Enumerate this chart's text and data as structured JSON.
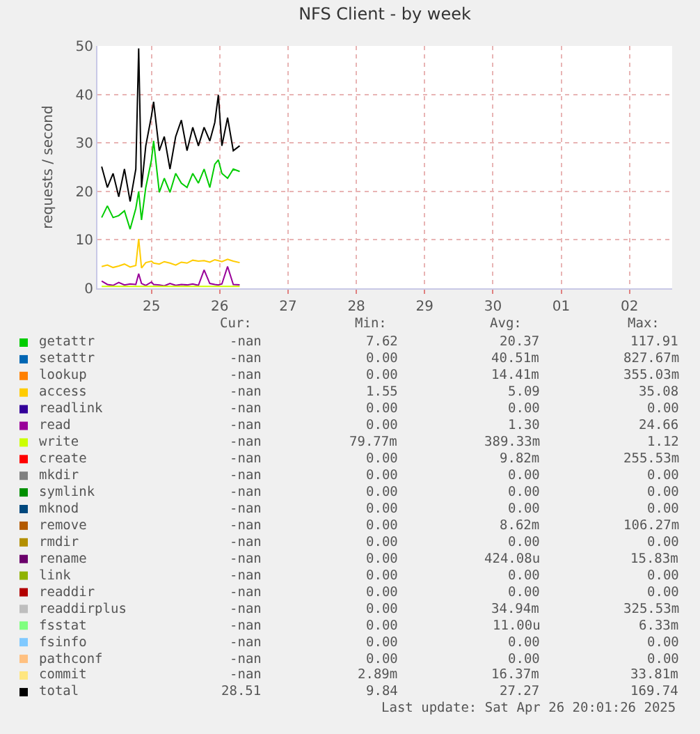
{
  "chart_data": {
    "type": "line",
    "title": "NFS Client - by week",
    "ylabel": "requests / second",
    "x": [
      "2025-04-24T18:30",
      "2025-04-24T20:30",
      "2025-04-24T22:30",
      "2025-04-25T00:30",
      "2025-04-25T02:30",
      "2025-04-25T04:30",
      "2025-04-25T06:30",
      "2025-04-25T07:30",
      "2025-04-25T08:30",
      "2025-04-25T10:00",
      "2025-04-25T12:00",
      "2025-04-25T12:45",
      "2025-04-25T14:45",
      "2025-04-25T16:30",
      "2025-04-25T18:30",
      "2025-04-25T20:30",
      "2025-04-25T22:30",
      "2025-04-26T00:30",
      "2025-04-26T02:30",
      "2025-04-26T04:30",
      "2025-04-26T06:30",
      "2025-04-26T08:30",
      "2025-04-26T10:15",
      "2025-04-26T11:30",
      "2025-04-26T12:45",
      "2025-04-26T14:45",
      "2025-04-26T16:45",
      "2025-04-26T19:00"
    ],
    "series": [
      {
        "name": "getattr",
        "color": "#00cc00",
        "values": [
          14.6,
          17.0,
          14.6,
          15.0,
          16.0,
          12.2,
          16.5,
          20.0,
          14.1,
          20.8,
          26.5,
          30.4,
          19.8,
          22.7,
          19.8,
          23.7,
          21.7,
          20.8,
          23.7,
          21.7,
          24.6,
          20.8,
          25.6,
          26.5,
          23.7,
          22.7,
          24.6,
          24.1
        ]
      },
      {
        "name": "setattr",
        "color": "#0066b3",
        "values": [
          null,
          null,
          null,
          null,
          null,
          null,
          null,
          null,
          null,
          null,
          null,
          null,
          null,
          null,
          null,
          null,
          null,
          null,
          null,
          null,
          null,
          null,
          null,
          null,
          null,
          null,
          null,
          null
        ]
      },
      {
        "name": "lookup",
        "color": "#ff8000",
        "values": [
          null,
          null,
          null,
          null,
          null,
          null,
          null,
          null,
          null,
          null,
          null,
          null,
          null,
          null,
          null,
          null,
          null,
          null,
          null,
          null,
          null,
          null,
          null,
          null,
          null,
          null,
          null,
          null
        ]
      },
      {
        "name": "access",
        "color": "#ffcc00",
        "values": [
          4.5,
          4.8,
          4.3,
          4.6,
          5.0,
          4.4,
          4.7,
          10.2,
          4.2,
          5.3,
          5.6,
          5.2,
          5.0,
          5.5,
          5.2,
          4.8,
          5.4,
          5.2,
          5.8,
          5.6,
          5.7,
          5.4,
          5.9,
          5.7,
          5.5,
          6.0,
          5.6,
          5.3
        ]
      },
      {
        "name": "readlink",
        "color": "#330099",
        "values": [
          null,
          null,
          null,
          null,
          null,
          null,
          null,
          null,
          null,
          null,
          null,
          null,
          null,
          null,
          null,
          null,
          null,
          null,
          null,
          null,
          null,
          null,
          null,
          null,
          null,
          null,
          null,
          null
        ]
      },
      {
        "name": "read",
        "color": "#990099",
        "values": [
          1.5,
          0.8,
          0.6,
          1.2,
          0.7,
          0.9,
          0.8,
          3.0,
          1.0,
          0.6,
          1.3,
          0.8,
          0.7,
          0.5,
          1.0,
          0.6,
          0.8,
          0.7,
          0.9,
          0.6,
          3.8,
          1.0,
          0.8,
          0.7,
          0.9,
          4.5,
          0.8,
          0.7
        ]
      },
      {
        "name": "write",
        "color": "#ccff00",
        "values": [
          0.4,
          0.4,
          0.4,
          0.4,
          0.4,
          0.4,
          0.4,
          0.4,
          0.4,
          0.4,
          0.4,
          0.4,
          0.4,
          0.4,
          0.4,
          0.4,
          0.4,
          0.4,
          0.4,
          0.4,
          0.4,
          0.4,
          0.4,
          0.4,
          0.4,
          0.4,
          0.4,
          0.4
        ]
      },
      {
        "name": "create",
        "color": "#ff0000",
        "values": [
          null,
          null,
          null,
          null,
          null,
          null,
          null,
          null,
          null,
          null,
          null,
          null,
          null,
          null,
          null,
          null,
          null,
          null,
          null,
          null,
          null,
          null,
          null,
          null,
          null,
          null,
          null,
          null
        ]
      },
      {
        "name": "mkdir",
        "color": "#808080",
        "values": [
          null,
          null,
          null,
          null,
          null,
          null,
          null,
          null,
          null,
          null,
          null,
          null,
          null,
          null,
          null,
          null,
          null,
          null,
          null,
          null,
          null,
          null,
          null,
          null,
          null,
          null,
          null,
          null
        ]
      },
      {
        "name": "symlink",
        "color": "#008f00",
        "values": [
          null,
          null,
          null,
          null,
          null,
          null,
          null,
          null,
          null,
          null,
          null,
          null,
          null,
          null,
          null,
          null,
          null,
          null,
          null,
          null,
          null,
          null,
          null,
          null,
          null,
          null,
          null,
          null
        ]
      },
      {
        "name": "mknod",
        "color": "#00487d",
        "values": [
          null,
          null,
          null,
          null,
          null,
          null,
          null,
          null,
          null,
          null,
          null,
          null,
          null,
          null,
          null,
          null,
          null,
          null,
          null,
          null,
          null,
          null,
          null,
          null,
          null,
          null,
          null,
          null
        ]
      },
      {
        "name": "remove",
        "color": "#b35a00",
        "values": [
          null,
          null,
          null,
          null,
          null,
          null,
          null,
          null,
          null,
          null,
          null,
          null,
          null,
          null,
          null,
          null,
          null,
          null,
          null,
          null,
          null,
          null,
          null,
          null,
          null,
          null,
          null,
          null
        ]
      },
      {
        "name": "rmdir",
        "color": "#b38f00",
        "values": [
          null,
          null,
          null,
          null,
          null,
          null,
          null,
          null,
          null,
          null,
          null,
          null,
          null,
          null,
          null,
          null,
          null,
          null,
          null,
          null,
          null,
          null,
          null,
          null,
          null,
          null,
          null,
          null
        ]
      },
      {
        "name": "rename",
        "color": "#6b006b",
        "values": [
          null,
          null,
          null,
          null,
          null,
          null,
          null,
          null,
          null,
          null,
          null,
          null,
          null,
          null,
          null,
          null,
          null,
          null,
          null,
          null,
          null,
          null,
          null,
          null,
          null,
          null,
          null,
          null
        ]
      },
      {
        "name": "link",
        "color": "#8fb300",
        "values": [
          null,
          null,
          null,
          null,
          null,
          null,
          null,
          null,
          null,
          null,
          null,
          null,
          null,
          null,
          null,
          null,
          null,
          null,
          null,
          null,
          null,
          null,
          null,
          null,
          null,
          null,
          null,
          null
        ]
      },
      {
        "name": "readdir",
        "color": "#b30000",
        "values": [
          null,
          null,
          null,
          null,
          null,
          null,
          null,
          null,
          null,
          null,
          null,
          null,
          null,
          null,
          null,
          null,
          null,
          null,
          null,
          null,
          null,
          null,
          null,
          null,
          null,
          null,
          null,
          null
        ]
      },
      {
        "name": "readdirplus",
        "color": "#bebebe",
        "values": [
          null,
          null,
          null,
          null,
          null,
          null,
          null,
          null,
          null,
          null,
          null,
          null,
          null,
          null,
          null,
          null,
          null,
          null,
          null,
          null,
          null,
          null,
          null,
          null,
          null,
          null,
          null,
          null
        ]
      },
      {
        "name": "fsstat",
        "color": "#80ff80",
        "values": [
          null,
          null,
          null,
          null,
          null,
          null,
          null,
          null,
          null,
          null,
          null,
          null,
          null,
          null,
          null,
          null,
          null,
          null,
          null,
          null,
          null,
          null,
          null,
          null,
          null,
          null,
          null,
          null
        ]
      },
      {
        "name": "fsinfo",
        "color": "#80c9ff",
        "values": [
          null,
          null,
          null,
          null,
          null,
          null,
          null,
          null,
          null,
          null,
          null,
          null,
          null,
          null,
          null,
          null,
          null,
          null,
          null,
          null,
          null,
          null,
          null,
          null,
          null,
          null,
          null,
          null
        ]
      },
      {
        "name": "pathconf",
        "color": "#ffc080",
        "values": [
          null,
          null,
          null,
          null,
          null,
          null,
          null,
          null,
          null,
          null,
          null,
          null,
          null,
          null,
          null,
          null,
          null,
          null,
          null,
          null,
          null,
          null,
          null,
          null,
          null,
          null,
          null,
          null
        ]
      },
      {
        "name": "commit",
        "color": "#ffe680",
        "values": [
          null,
          null,
          null,
          null,
          null,
          null,
          null,
          null,
          null,
          null,
          null,
          null,
          null,
          null,
          null,
          null,
          null,
          null,
          null,
          null,
          null,
          null,
          null,
          null,
          null,
          null,
          null,
          null
        ]
      },
      {
        "name": "total",
        "color": "#000000",
        "values": [
          25.1,
          20.8,
          23.7,
          18.9,
          24.6,
          17.9,
          24.6,
          49.5,
          20.8,
          29.4,
          35.6,
          38.5,
          28.4,
          31.3,
          24.6,
          31.3,
          34.7,
          28.4,
          33.2,
          29.4,
          33.2,
          30.4,
          34.2,
          39.9,
          29.4,
          35.2,
          28.4,
          29.4
        ]
      }
    ],
    "xlim": [
      "2025-04-24T17:00",
      "2025-05-03T03:00"
    ],
    "xticks": [
      {
        "value": "2025-04-25T12:00",
        "label": "25"
      },
      {
        "value": "2025-04-26T12:00",
        "label": "26"
      },
      {
        "value": "2025-04-27T12:00",
        "label": "27"
      },
      {
        "value": "2025-04-28T12:00",
        "label": "28"
      },
      {
        "value": "2025-04-29T12:00",
        "label": "29"
      },
      {
        "value": "2025-04-30T12:00",
        "label": "30"
      },
      {
        "value": "2025-05-01T12:00",
        "label": "01"
      },
      {
        "value": "2025-05-02T12:00",
        "label": "02"
      }
    ],
    "ylim": [
      0,
      50
    ],
    "yticks": [
      0,
      10,
      20,
      30,
      40,
      50
    ],
    "grid": true,
    "legend": "bottom",
    "marker": "none",
    "line_style": "solid",
    "annotations": [
      "Cur:",
      "Min:",
      "Avg:",
      "Max:",
      "-nan",
      "7.62",
      "20.37",
      "117.91",
      "-nan",
      "0.00",
      "40.51m",
      "827.67m",
      "-nan",
      "0.00",
      "14.41m",
      "355.03m",
      "-nan",
      "1.55",
      "5.09",
      "35.08",
      "-nan",
      "0.00",
      "0.00",
      "0.00",
      "-nan",
      "0.00",
      "1.30",
      "24.66",
      "-nan",
      "79.77m",
      "389.33m",
      "1.12",
      "-nan",
      "0.00",
      "9.82m",
      "255.53m",
      "-nan",
      "0.00",
      "0.00",
      "0.00",
      "-nan",
      "0.00",
      "0.00",
      "0.00",
      "-nan",
      "0.00",
      "0.00",
      "0.00",
      "-nan",
      "0.00",
      "8.62m",
      "106.27m",
      "-nan",
      "0.00",
      "0.00",
      "0.00",
      "-nan",
      "0.00",
      "424.08u",
      "15.83m",
      "-nan",
      "0.00",
      "0.00",
      "0.00",
      "-nan",
      "0.00",
      "0.00",
      "0.00",
      "-nan",
      "0.00",
      "34.94m",
      "325.53m",
      "-nan",
      "0.00",
      "11.00u",
      "6.33m",
      "-nan",
      "0.00",
      "0.00",
      "0.00",
      "-nan",
      "0.00",
      "0.00",
      "0.00",
      "-nan",
      "2.89m",
      "16.37m",
      "33.81m",
      "28.51",
      "9.84",
      "27.27",
      "169.74",
      "Last update: Sat Apr 26 20:01:26 2025"
    ]
  }
}
